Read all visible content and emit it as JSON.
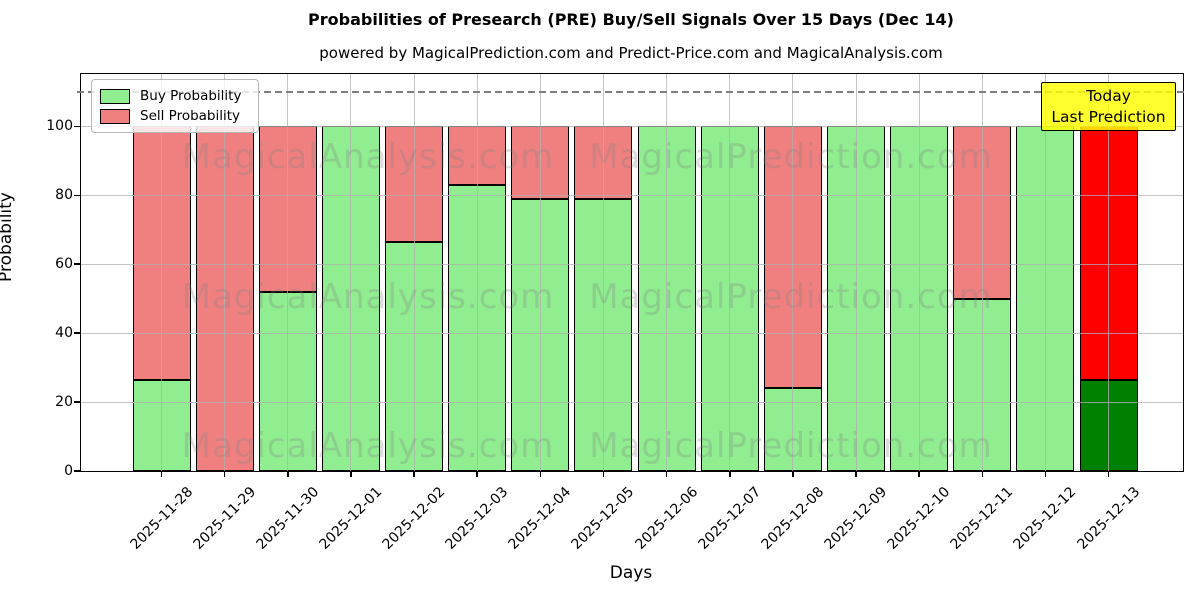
{
  "title": "Probabilities of Presearch (PRE) Buy/Sell Signals Over 15 Days (Dec 14)",
  "subtitle": "powered by MagicalPrediction.com and Predict-Price.com and MagicalAnalysis.com",
  "axes": {
    "x_label": "Days",
    "y_label": "Probability",
    "y_ticks": [
      0,
      20,
      40,
      60,
      80,
      100
    ],
    "ylim": [
      0,
      115.2
    ],
    "grid": true
  },
  "legend": {
    "position": "upper-left",
    "items": [
      {
        "label": "Buy Probability",
        "color": "#90EE90"
      },
      {
        "label": "Sell Probability",
        "color": "#F08080"
      }
    ]
  },
  "annotation": {
    "line1": "Today",
    "line2": "Last Prediction",
    "bg_color": "#FFFF00"
  },
  "watermarks": {
    "left_text": "MagicalAnalysis.com",
    "right_text": "MagicalPrediction.com",
    "color": "#808080"
  },
  "chart_data": {
    "type": "bar",
    "stacked": true,
    "title": "Probabilities of Presearch (PRE) Buy/Sell Signals Over 15 Days (Dec 14)",
    "xlabel": "Days",
    "ylabel": "Probability",
    "ylim": [
      0,
      115.2
    ],
    "threshold_dashed_line_y": 110,
    "categories": [
      "2025-11-28",
      "2025-11-29",
      "2025-11-30",
      "2025-12-01",
      "2025-12-02",
      "2025-12-03",
      "2025-12-04",
      "2025-12-05",
      "2025-12-06",
      "2025-12-07",
      "2025-12-08",
      "2025-12-09",
      "2025-12-10",
      "2025-12-11",
      "2025-12-12",
      "2025-12-13"
    ],
    "series": [
      {
        "name": "Buy Probability",
        "color": "#90EE90",
        "values": [
          26.5,
          0,
          52,
          100,
          66.5,
          83,
          79,
          79,
          100,
          100,
          24,
          100,
          100,
          50,
          100,
          26.5
        ]
      },
      {
        "name": "Sell Probability",
        "color": "#F08080",
        "values": [
          73.5,
          100,
          48,
          0,
          33.5,
          17,
          21,
          21,
          0,
          0,
          76,
          0,
          0,
          50,
          0,
          73.5
        ]
      }
    ],
    "today_index": 15,
    "today_colors": {
      "buy": "#008000",
      "sell": "#FF0000"
    }
  }
}
